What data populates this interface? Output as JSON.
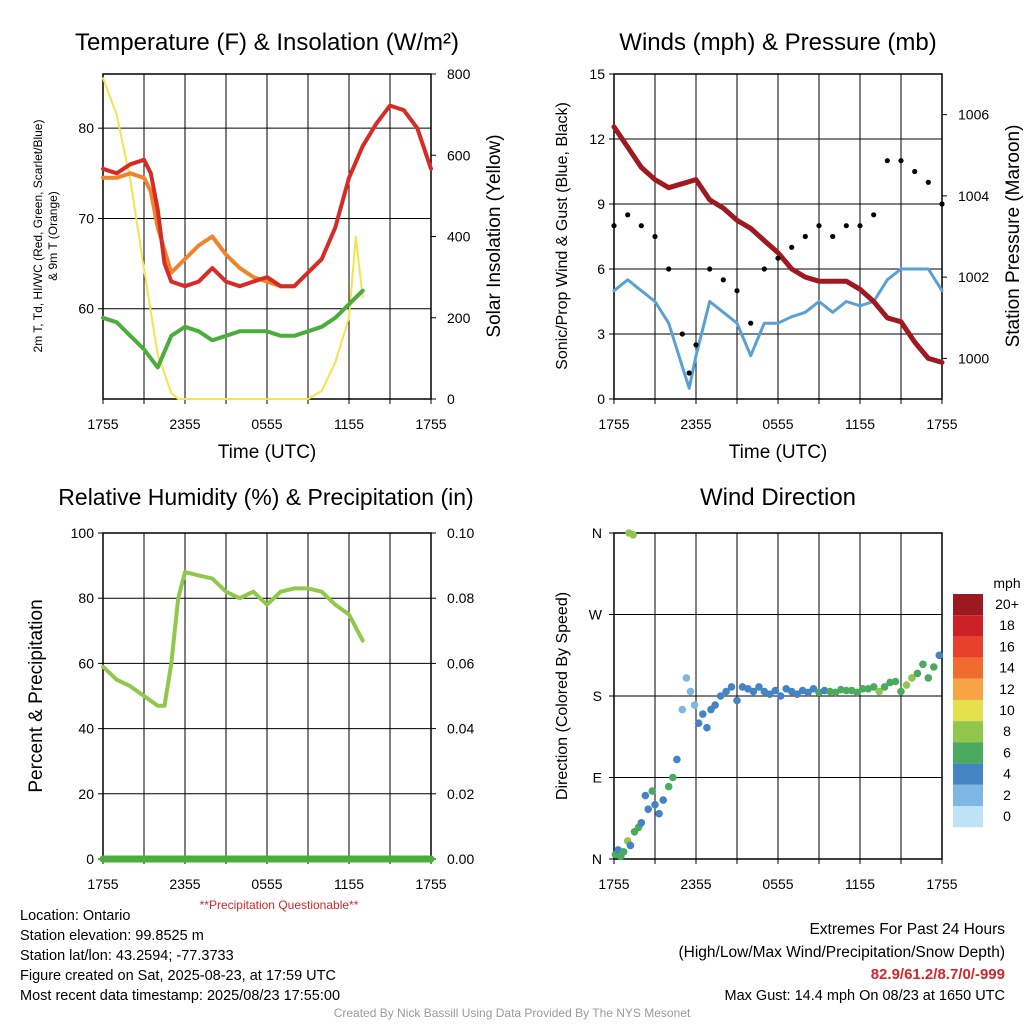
{
  "colors": {
    "red": "#d62b27",
    "green": "#4bae3c",
    "orange": "#f0842b",
    "yellow": "#f6e34c",
    "blue": "#5aa0d6",
    "black": "#000000",
    "maroon": "#a0191e",
    "rh": "#90c94a",
    "precip_label": "#d0282c",
    "credit": "#9a9a9a"
  },
  "panels": {
    "temp": {
      "title": "Temperature (F) & Insolation (W/m²)",
      "ylabel_left_line1": "2m T, Td, HI/WC (Red, Green, Scarlet/Blue)",
      "ylabel_left_line2": "& 9m T (Orange)",
      "ylabel_right": "Solar Insolation (Yellow)",
      "xlabel": "Time (UTC)"
    },
    "wind": {
      "title": "Winds (mph) & Pressure (mb)",
      "ylabel_left": "Sonic/Prop Wind & Gust (Blue, Black)",
      "ylabel_right": "Station Pressure (Maroon)",
      "xlabel": "Time (UTC)"
    },
    "rh": {
      "title": "Relative Humidity (%) & Precipitation (in)",
      "ylabel_left": "Percent & Precipitation",
      "note": "**Precipitation Questionable**"
    },
    "dir": {
      "title": "Wind Direction",
      "ylabel_left": "Direction (Colored By Speed)",
      "colorbar_title": "mph"
    }
  },
  "chart_data": [
    {
      "type": "line",
      "panel": "temp",
      "x_ticks": [
        "1755",
        "2355",
        "0555",
        "1155",
        "1755"
      ],
      "x_range_hours": [
        0,
        24
      ],
      "ylim_left": [
        50,
        86
      ],
      "ylim_right": [
        0,
        800
      ],
      "y_ticks_left": [
        60,
        70,
        80
      ],
      "y_ticks_right": [
        0,
        200,
        400,
        600,
        800
      ],
      "series": [
        {
          "name": "2m T",
          "axis": "left",
          "color": "red",
          "x": [
            0,
            1,
            2,
            3,
            3.5,
            4,
            4.5,
            5,
            6,
            7,
            8,
            9,
            10,
            11,
            12,
            13,
            14,
            15,
            16,
            17,
            18,
            19,
            20,
            21,
            22,
            23,
            24
          ],
          "y": [
            75.5,
            75,
            76,
            76.5,
            75,
            71,
            65,
            63,
            62.5,
            63,
            64.5,
            63,
            62.5,
            63,
            63.5,
            62.5,
            62.5,
            64,
            65.5,
            69,
            74.5,
            78,
            80.5,
            82.5,
            82,
            80,
            75.5
          ]
        },
        {
          "name": "9m T",
          "axis": "left",
          "color": "orange",
          "x": [
            0,
            1,
            2,
            3,
            3.5,
            4,
            5,
            6,
            7,
            8,
            9,
            10,
            11,
            12,
            13,
            14
          ],
          "y": [
            74.5,
            74.5,
            75,
            74.5,
            73,
            69,
            64,
            65.5,
            67,
            68,
            66,
            64.5,
            63.5,
            63,
            62.5,
            62.5
          ]
        },
        {
          "name": "Td",
          "axis": "left",
          "color": "green",
          "x": [
            0,
            1,
            2,
            3,
            4,
            5,
            6,
            7,
            8,
            9,
            10,
            11,
            12,
            13,
            14,
            15,
            16,
            17,
            18,
            19
          ],
          "y": [
            59,
            58.5,
            57,
            55.5,
            53.5,
            57,
            58,
            57.5,
            56.5,
            57,
            57.5,
            57.5,
            57.5,
            57,
            57,
            57.5,
            58,
            59,
            60.5,
            62
          ]
        },
        {
          "name": "Solar Insolation",
          "axis": "right",
          "color": "yellow",
          "x": [
            0,
            1,
            2,
            3,
            4,
            5,
            5.5,
            15,
            16,
            17,
            18,
            18.5,
            19
          ],
          "y": [
            790,
            700,
            540,
            320,
            110,
            15,
            0,
            0,
            20,
            90,
            200,
            400,
            250
          ]
        }
      ]
    },
    {
      "type": "line",
      "panel": "wind",
      "x_ticks": [
        "1755",
        "2355",
        "0555",
        "1155",
        "1755"
      ],
      "x_range_hours": [
        0,
        24
      ],
      "ylim_left": [
        0,
        15
      ],
      "ylim_right": [
        999,
        1007
      ],
      "y_ticks_left": [
        0,
        3,
        6,
        9,
        12,
        15
      ],
      "y_ticks_right": [
        1000,
        1002,
        1004,
        1006
      ],
      "series": [
        {
          "name": "Sonic/Prop Wind",
          "axis": "left",
          "color": "blue",
          "x": [
            0,
            1,
            2,
            3,
            4,
            5,
            5.5,
            6,
            7,
            8,
            9,
            10,
            11,
            12,
            13,
            14,
            15,
            16,
            17,
            18,
            19,
            20,
            21,
            22,
            23,
            24
          ],
          "y": [
            5,
            5.5,
            5,
            4.5,
            3.5,
            1.5,
            0.5,
            2,
            4.5,
            4,
            3.5,
            2,
            3.5,
            3.5,
            3.8,
            4,
            4.5,
            4,
            4.5,
            4.3,
            4.5,
            5.5,
            6,
            6,
            6,
            5
          ]
        },
        {
          "name": "Gust",
          "axis": "left",
          "color": "black",
          "x": [
            0,
            1,
            2,
            3,
            4,
            5,
            5.5,
            6,
            7,
            8,
            9,
            10,
            11,
            12,
            13,
            14,
            15,
            16,
            17,
            18,
            19,
            20,
            21,
            22,
            23,
            24
          ],
          "y": [
            8,
            8.5,
            8,
            7.5,
            6,
            3,
            1.2,
            2.5,
            6,
            5.5,
            5,
            3.5,
            6,
            6.5,
            7,
            7.5,
            8,
            7.5,
            8,
            8,
            8.5,
            11,
            11,
            10.5,
            10,
            9
          ]
        },
        {
          "name": "Station Pressure",
          "axis": "right",
          "color": "maroon",
          "x": [
            0,
            1,
            2,
            3,
            4,
            5,
            6,
            7,
            8,
            9,
            10,
            11,
            12,
            13,
            14,
            15,
            16,
            17,
            18,
            19,
            20,
            21,
            22,
            23,
            24
          ],
          "y": [
            1005.7,
            1005.2,
            1004.7,
            1004.4,
            1004.2,
            1004.3,
            1004.4,
            1003.9,
            1003.7,
            1003.4,
            1003.2,
            1002.9,
            1002.6,
            1002.2,
            1002,
            1001.9,
            1001.9,
            1001.9,
            1001.7,
            1001.4,
            1001,
            1000.9,
            1000.4,
            1000,
            999.9
          ]
        }
      ]
    },
    {
      "type": "line",
      "panel": "rh",
      "x_ticks": [
        "1755",
        "2355",
        "0555",
        "1155",
        "1755"
      ],
      "x_range_hours": [
        0,
        24
      ],
      "ylim_left": [
        0,
        100
      ],
      "ylim_right": [
        0,
        0.1
      ],
      "y_ticks_left": [
        0,
        20,
        40,
        60,
        80,
        100
      ],
      "y_ticks_right": [
        "0.00",
        "0.02",
        "0.04",
        "0.06",
        "0.08",
        "0.10"
      ],
      "series": [
        {
          "name": "Relative Humidity",
          "axis": "left",
          "color": "rh",
          "x": [
            0,
            1,
            2,
            3,
            4,
            4.5,
            5,
            5.5,
            6,
            7,
            8,
            9,
            10,
            11,
            12,
            13,
            14,
            15,
            16,
            17,
            18,
            19
          ],
          "y": [
            59,
            55,
            53,
            50,
            47,
            47,
            60,
            80,
            88,
            87,
            86,
            82,
            80,
            82,
            78,
            82,
            83,
            83,
            82,
            78,
            75,
            67
          ]
        },
        {
          "name": "Precipitation",
          "axis": "right",
          "color": "green",
          "x": [
            0,
            24
          ],
          "y": [
            0,
            0
          ]
        }
      ]
    },
    {
      "type": "scatter",
      "panel": "dir",
      "x_ticks": [
        "1755",
        "2355",
        "0555",
        "1155",
        "1755"
      ],
      "x_range_hours": [
        0,
        24
      ],
      "y_ticks": [
        "N",
        "E",
        "S",
        "W",
        "N"
      ],
      "ylim_degrees": [
        0,
        360
      ],
      "colorbar_ticks": [
        "20+",
        "18",
        "16",
        "14",
        "12",
        "10",
        "8",
        "6",
        "4",
        "2",
        "0"
      ],
      "colorbar_colors": [
        "#9b1a1f",
        "#cb2127",
        "#e8412b",
        "#f06c2e",
        "#f6a446",
        "#e5e14c",
        "#8fc64b",
        "#4aaa5e",
        "#4584c4",
        "#7db8e4",
        "#bee3f7"
      ],
      "points_x": [
        0.1,
        0.3,
        0.5,
        0.7,
        1,
        1.2,
        1.5,
        1.8,
        2,
        2.3,
        2.5,
        2.8,
        3,
        3.3,
        3.6,
        4,
        4.3,
        4.6,
        5,
        5.3,
        5.6,
        5.9,
        6.2,
        6.5,
        6.8,
        7.1,
        7.4,
        7.8,
        8.2,
        8.6,
        9,
        9.4,
        9.8,
        10.2,
        10.6,
        11,
        11.4,
        11.8,
        12.2,
        12.6,
        13,
        13.4,
        13.8,
        14.2,
        14.6,
        15,
        15.4,
        15.8,
        16.2,
        16.6,
        17,
        17.4,
        17.8,
        18.2,
        18.6,
        19,
        19.4,
        19.8,
        20.2,
        20.6,
        21,
        21.4,
        21.8,
        22.2,
        22.6,
        23,
        23.4,
        23.8,
        1.1,
        1.4
      ],
      "points_dir": [
        5,
        10,
        3,
        8,
        20,
        15,
        30,
        35,
        40,
        70,
        55,
        75,
        60,
        50,
        65,
        80,
        90,
        110,
        165,
        200,
        185,
        170,
        150,
        160,
        145,
        165,
        170,
        180,
        185,
        190,
        175,
        190,
        188,
        185,
        190,
        185,
        182,
        186,
        180,
        188,
        185,
        182,
        186,
        184,
        188,
        184,
        186,
        185,
        184,
        187,
        186,
        186,
        184,
        188,
        188,
        190,
        185,
        190,
        195,
        196,
        185,
        192,
        200,
        205,
        215,
        200,
        212,
        225,
        360,
        358
      ],
      "points_speed": [
        5,
        4,
        6,
        5,
        7,
        4,
        6,
        5,
        4,
        3,
        4,
        5,
        4,
        3,
        4,
        5,
        6,
        4,
        1,
        1,
        2,
        1,
        3,
        4,
        3,
        3,
        4,
        4,
        4,
        4,
        3,
        4,
        4,
        4,
        4,
        4,
        4,
        4,
        4,
        4,
        4,
        4,
        4,
        4,
        4,
        5,
        4,
        5,
        5,
        5,
        5,
        5,
        5,
        6,
        6,
        6,
        7,
        6,
        5,
        6,
        6,
        7,
        7,
        6,
        5,
        5,
        6,
        4,
        7,
        7
      ]
    }
  ],
  "xtick_labels": [
    "1755",
    "2355",
    "0555",
    "1155",
    "1755"
  ],
  "info": {
    "location": "Location: Ontario",
    "elevation": "Station elevation: 99.8525 m",
    "latlon": "Station lat/lon: 43.2594; -77.3733",
    "created": "Figure created on Sat, 2025-08-23, at 17:59 UTC",
    "recent": "Most recent data timestamp: 2025/08/23 17:55:00"
  },
  "extremes": {
    "title": "Extremes For Past 24 Hours",
    "subtitle": "(High/Low/Max Wind/Precipitation/Snow Depth)",
    "values": "82.9/61.2/8.7/0/-999",
    "gust": "Max Gust: 14.4 mph On 08/23 at 1650 UTC"
  },
  "credit": "Created By Nick Bassill Using Data Provided By The NYS Mesonet"
}
